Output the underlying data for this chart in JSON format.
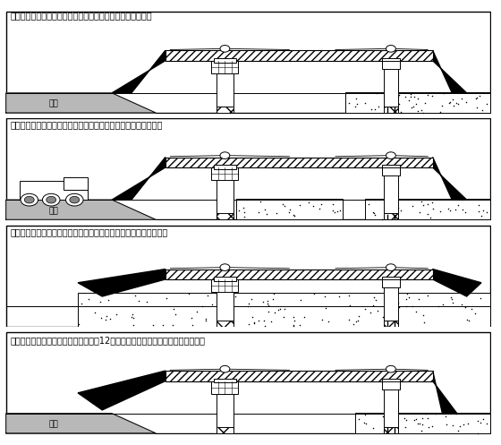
{
  "bg_color": "#ffffff",
  "steps": [
    "第一步：栈桥安装就绪，允许车辆通过，准备桥下仰拱作业。",
    "第二步：桥下仰拱作业，各种车辆正常通过，桥上桥下互不干扰。",
    "第三步：仰拱施工结束，坡桥升起，行走轮下降，将整个栈桥撑起。",
    "第四步：启动行走电机，整体移动栈桥12米，然后放下坡桥准备第二段仰拱施工。"
  ]
}
